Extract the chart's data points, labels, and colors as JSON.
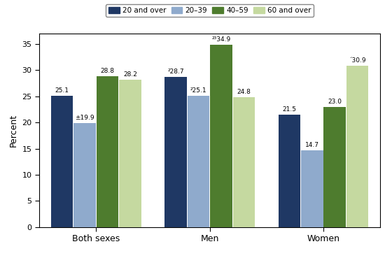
{
  "groups": [
    "Both sexes",
    "Men",
    "Women"
  ],
  "series": [
    "20 and over",
    "20–39",
    "40–59",
    "60 and over"
  ],
  "values": {
    "Both sexes": [
      25.1,
      19.9,
      28.8,
      28.2
    ],
    "Men": [
      28.7,
      25.1,
      34.9,
      24.8
    ],
    "Women": [
      21.5,
      14.7,
      23.0,
      30.9
    ]
  },
  "bar_labels": {
    "Both sexes": [
      "25.1",
      "±19.9",
      "28.8",
      "28.2"
    ],
    "Men": [
      "²28.7",
      "²25.1",
      "²³34.9",
      "24.8"
    ],
    "Women": [
      "21.5",
      "14.7",
      "23.0",
      "´30.9"
    ]
  },
  "colors": [
    "#1f3864",
    "#8faacc",
    "#4e7c2e",
    "#c5d9a0"
  ],
  "ylabel": "Percent",
  "ylim": [
    0,
    37
  ],
  "yticks": [
    0,
    5,
    10,
    15,
    20,
    25,
    30,
    35
  ],
  "legend_labels": [
    "20 and over",
    "20–39",
    "40–59",
    "60 and over"
  ],
  "background_color": "#ffffff",
  "plot_bg_color": "#ffffff",
  "bar_width": 0.2,
  "group_positions": [
    0.0,
    1.0,
    2.0
  ]
}
